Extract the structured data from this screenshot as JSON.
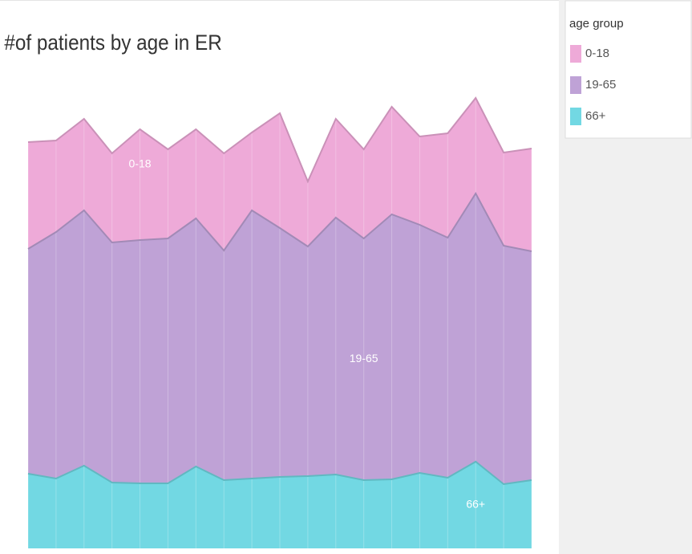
{
  "chart_data": {
    "type": "stacked-area",
    "title": "#of patients by age in ER",
    "legend_title": "age group",
    "legend": "right",
    "series": [
      {
        "name": "0-18",
        "color": "#eeaad8",
        "values": [
          133,
          114,
          114,
          111,
          138,
          111,
          111,
          121,
          97,
          143,
          81,
          123,
          111,
          134,
          110,
          130,
          119,
          116,
          128
        ]
      },
      {
        "name": "19-65",
        "color": "#bfa2d6",
        "values": [
          280,
          307,
          318,
          299,
          303,
          305,
          309,
          286,
          334,
          310,
          286,
          320,
          301,
          330,
          309,
          299,
          334,
          297,
          285
        ]
      },
      {
        "name": "66+",
        "color": "#72d8e3",
        "values": [
          93,
          87,
          103,
          82,
          81,
          81,
          102,
          85,
          87,
          89,
          90,
          92,
          85,
          86,
          94,
          88,
          108,
          80,
          85
        ]
      }
    ]
  }
}
